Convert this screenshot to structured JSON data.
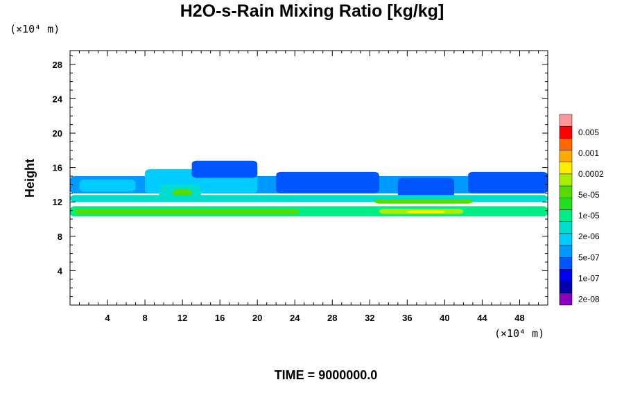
{
  "chart_data": {
    "type": "heatmap",
    "title": "H2O-s-Rain Mixing Ratio [kg/kg]",
    "ylabel": "Height",
    "x_unit": "(×10⁴ m)",
    "y_unit": "(×10⁴ m)",
    "xlim": [
      0,
      51
    ],
    "ylim": [
      0,
      29.6
    ],
    "x_ticks": [
      4,
      8,
      12,
      16,
      20,
      24,
      28,
      32,
      36,
      40,
      44,
      48
    ],
    "y_ticks": [
      4,
      8,
      12,
      16,
      20,
      24,
      28
    ],
    "colorbar": {
      "labels": [
        "0.005",
        "0.001",
        "0.0002",
        "5e-05",
        "1e-05",
        "2e-06",
        "5e-07",
        "1e-07",
        "2e-08"
      ],
      "colors": [
        "#ff9999",
        "#ff0000",
        "#ff6600",
        "#ffaa00",
        "#ffee00",
        "#aaee00",
        "#55dd00",
        "#22dd22",
        "#00ee88",
        "#00ddcc",
        "#00ccff",
        "#0099ff",
        "#0055ff",
        "#0000ee",
        "#0000aa",
        "#8800bb"
      ]
    },
    "cloud_bands": [
      {
        "x0": 0.0,
        "x1": 51.0,
        "y0": 13.0,
        "y1": 15.0,
        "level": 11
      },
      {
        "x0": 1.0,
        "x1": 7.0,
        "y0": 13.2,
        "y1": 14.6,
        "level": 10
      },
      {
        "x0": 8.0,
        "x1": 20.0,
        "y0": 13.0,
        "y1": 15.8,
        "level": 10
      },
      {
        "x0": 9.5,
        "x1": 14.0,
        "y0": 12.5,
        "y1": 14.0,
        "level": 9
      },
      {
        "x0": 11.0,
        "x1": 13.0,
        "y0": 12.5,
        "y1": 13.5,
        "level": 6
      },
      {
        "x0": 13.0,
        "x1": 20.0,
        "y0": 14.8,
        "y1": 16.8,
        "level": 12
      },
      {
        "x0": 22.0,
        "x1": 33.0,
        "y0": 13.0,
        "y1": 15.5,
        "level": 12
      },
      {
        "x0": 35.0,
        "x1": 41.0,
        "y0": 12.5,
        "y1": 14.8,
        "level": 12
      },
      {
        "x0": 42.5,
        "x1": 51.0,
        "y0": 13.0,
        "y1": 15.5,
        "level": 12
      },
      {
        "x0": 0.0,
        "x1": 51.0,
        "y0": 12.0,
        "y1": 12.8,
        "level": 9
      },
      {
        "x0": 0.0,
        "x1": 51.0,
        "y0": 10.3,
        "y1": 11.5,
        "level": 8
      },
      {
        "x0": 0.5,
        "x1": 24.5,
        "y0": 10.6,
        "y1": 11.2,
        "level": 6
      },
      {
        "x0": 32.5,
        "x1": 43.0,
        "y0": 11.8,
        "y1": 12.3,
        "level": 6
      },
      {
        "x0": 33.0,
        "x1": 42.0,
        "y0": 10.6,
        "y1": 11.2,
        "level": 5
      },
      {
        "x0": 36.0,
        "x1": 40.0,
        "y0": 10.7,
        "y1": 11.0,
        "level": 4
      }
    ]
  },
  "time_label": "TIME = 9000000.0"
}
